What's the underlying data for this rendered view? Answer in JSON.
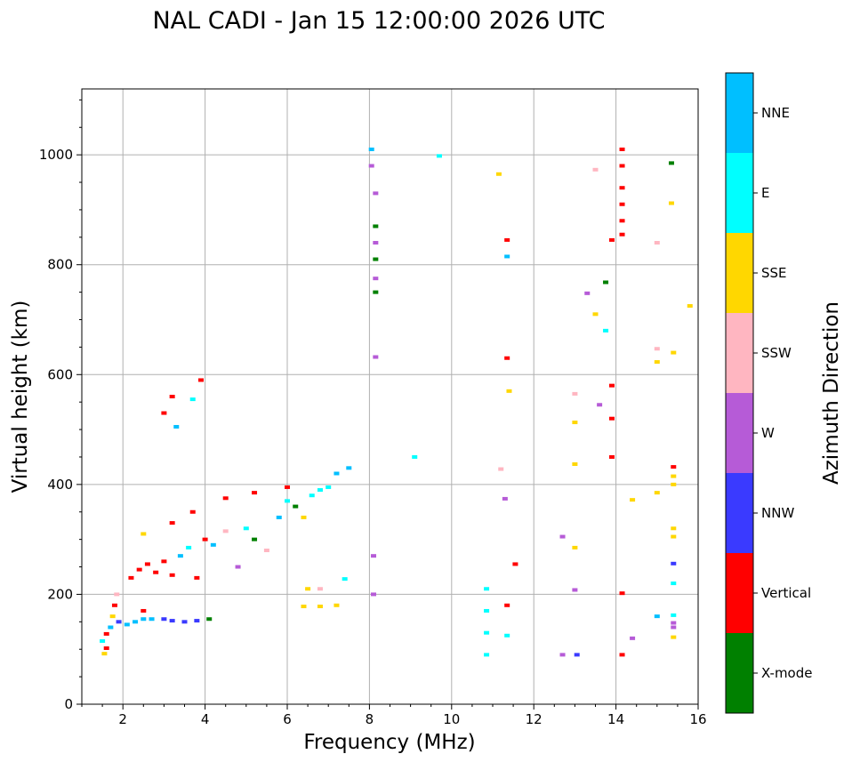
{
  "chart_data": {
    "type": "scatter",
    "title": "NAL CADI - Jan 15 12:00:00 2026 UTC",
    "xlabel": "Frequency (MHz)",
    "ylabel": "Virtual height (km)",
    "xlim": [
      1.0,
      16.0
    ],
    "ylim": [
      0,
      1120
    ],
    "xticks": [
      2,
      4,
      6,
      8,
      10,
      12,
      14,
      16
    ],
    "yticks": [
      0,
      200,
      400,
      600,
      800,
      1000
    ],
    "grid": true,
    "colorbar": {
      "label": "Azimuth Direction",
      "categories": [
        {
          "name": "X-mode",
          "color": "#008000"
        },
        {
          "name": "Vertical",
          "color": "#ff0000"
        },
        {
          "name": "NNW",
          "color": "#3a3aff"
        },
        {
          "name": "W",
          "color": "#b65bd7"
        },
        {
          "name": "SSW",
          "color": "#ffb6c1"
        },
        {
          "name": "SSE",
          "color": "#ffd700"
        },
        {
          "name": "E",
          "color": "#00ffff"
        },
        {
          "name": "NNE",
          "color": "#00bfff"
        }
      ]
    },
    "points": [
      {
        "f": 1.55,
        "h": 92,
        "c": "SSE"
      },
      {
        "f": 1.6,
        "h": 102,
        "c": "Vertical"
      },
      {
        "f": 1.5,
        "h": 115,
        "c": "E"
      },
      {
        "f": 1.6,
        "h": 128,
        "c": "Vertical"
      },
      {
        "f": 1.7,
        "h": 140,
        "c": "NNE"
      },
      {
        "f": 1.75,
        "h": 160,
        "c": "SSE"
      },
      {
        "f": 1.8,
        "h": 180,
        "c": "Vertical"
      },
      {
        "f": 1.85,
        "h": 200,
        "c": "SSW"
      },
      {
        "f": 1.9,
        "h": 150,
        "c": "NNW"
      },
      {
        "f": 2.1,
        "h": 145,
        "c": "NNE"
      },
      {
        "f": 2.3,
        "h": 150,
        "c": "NNE"
      },
      {
        "f": 2.5,
        "h": 155,
        "c": "NNE"
      },
      {
        "f": 2.5,
        "h": 170,
        "c": "Vertical"
      },
      {
        "f": 2.7,
        "h": 155,
        "c": "NNE"
      },
      {
        "f": 3.0,
        "h": 155,
        "c": "NNW"
      },
      {
        "f": 3.2,
        "h": 152,
        "c": "NNW"
      },
      {
        "f": 3.5,
        "h": 150,
        "c": "NNW"
      },
      {
        "f": 3.8,
        "h": 152,
        "c": "NNW"
      },
      {
        "f": 4.1,
        "h": 155,
        "c": "X-mode"
      },
      {
        "f": 2.2,
        "h": 230,
        "c": "Vertical"
      },
      {
        "f": 2.4,
        "h": 245,
        "c": "Vertical"
      },
      {
        "f": 2.6,
        "h": 255,
        "c": "Vertical"
      },
      {
        "f": 2.8,
        "h": 240,
        "c": "Vertical"
      },
      {
        "f": 3.0,
        "h": 260,
        "c": "Vertical"
      },
      {
        "f": 3.2,
        "h": 235,
        "c": "Vertical"
      },
      {
        "f": 3.4,
        "h": 270,
        "c": "NNE"
      },
      {
        "f": 3.6,
        "h": 285,
        "c": "E"
      },
      {
        "f": 3.8,
        "h": 230,
        "c": "Vertical"
      },
      {
        "f": 4.0,
        "h": 300,
        "c": "Vertical"
      },
      {
        "f": 4.2,
        "h": 290,
        "c": "NNE"
      },
      {
        "f": 4.5,
        "h": 315,
        "c": "SSW"
      },
      {
        "f": 4.8,
        "h": 250,
        "c": "W"
      },
      {
        "f": 5.0,
        "h": 320,
        "c": "E"
      },
      {
        "f": 5.2,
        "h": 300,
        "c": "X-mode"
      },
      {
        "f": 5.5,
        "h": 280,
        "c": "SSW"
      },
      {
        "f": 5.8,
        "h": 340,
        "c": "NNE"
      },
      {
        "f": 6.0,
        "h": 370,
        "c": "E"
      },
      {
        "f": 6.2,
        "h": 360,
        "c": "X-mode"
      },
      {
        "f": 6.4,
        "h": 340,
        "c": "SSE"
      },
      {
        "f": 6.6,
        "h": 380,
        "c": "E"
      },
      {
        "f": 6.8,
        "h": 390,
        "c": "E"
      },
      {
        "f": 7.0,
        "h": 395,
        "c": "E"
      },
      {
        "f": 7.2,
        "h": 420,
        "c": "NNE"
      },
      {
        "f": 7.5,
        "h": 430,
        "c": "NNE"
      },
      {
        "f": 2.5,
        "h": 310,
        "c": "SSE"
      },
      {
        "f": 3.2,
        "h": 330,
        "c": "Vertical"
      },
      {
        "f": 3.7,
        "h": 350,
        "c": "Vertical"
      },
      {
        "f": 4.5,
        "h": 375,
        "c": "Vertical"
      },
      {
        "f": 5.2,
        "h": 385,
        "c": "Vertical"
      },
      {
        "f": 6.0,
        "h": 395,
        "c": "Vertical"
      },
      {
        "f": 6.5,
        "h": 210,
        "c": "SSE"
      },
      {
        "f": 6.8,
        "h": 210,
        "c": "SSW"
      },
      {
        "f": 7.4,
        "h": 228,
        "c": "E"
      },
      {
        "f": 6.4,
        "h": 178,
        "c": "SSE"
      },
      {
        "f": 6.8,
        "h": 178,
        "c": "SSE"
      },
      {
        "f": 7.2,
        "h": 180,
        "c": "SSE"
      },
      {
        "f": 3.2,
        "h": 560,
        "c": "Vertical"
      },
      {
        "f": 3.7,
        "h": 555,
        "c": "E"
      },
      {
        "f": 3.9,
        "h": 590,
        "c": "Vertical"
      },
      {
        "f": 3.0,
        "h": 530,
        "c": "Vertical"
      },
      {
        "f": 3.3,
        "h": 505,
        "c": "NNE"
      },
      {
        "f": 8.05,
        "h": 1010,
        "c": "NNE"
      },
      {
        "f": 8.05,
        "h": 980,
        "c": "W"
      },
      {
        "f": 8.15,
        "h": 930,
        "c": "W"
      },
      {
        "f": 8.15,
        "h": 870,
        "c": "X-mode"
      },
      {
        "f": 8.15,
        "h": 840,
        "c": "W"
      },
      {
        "f": 8.15,
        "h": 810,
        "c": "X-mode"
      },
      {
        "f": 8.15,
        "h": 775,
        "c": "W"
      },
      {
        "f": 8.15,
        "h": 750,
        "c": "X-mode"
      },
      {
        "f": 8.15,
        "h": 632,
        "c": "W"
      },
      {
        "f": 8.1,
        "h": 270,
        "c": "W"
      },
      {
        "f": 8.1,
        "h": 200,
        "c": "W"
      },
      {
        "f": 9.1,
        "h": 450,
        "c": "E"
      },
      {
        "f": 9.7,
        "h": 998,
        "c": "E"
      },
      {
        "f": 10.85,
        "h": 90,
        "c": "E"
      },
      {
        "f": 10.85,
        "h": 130,
        "c": "E"
      },
      {
        "f": 10.85,
        "h": 170,
        "c": "E"
      },
      {
        "f": 10.85,
        "h": 210,
        "c": "E"
      },
      {
        "f": 11.15,
        "h": 965,
        "c": "SSE"
      },
      {
        "f": 11.35,
        "h": 845,
        "c": "Vertical"
      },
      {
        "f": 11.35,
        "h": 815,
        "c": "NNE"
      },
      {
        "f": 11.35,
        "h": 630,
        "c": "Vertical"
      },
      {
        "f": 11.4,
        "h": 570,
        "c": "SSE"
      },
      {
        "f": 11.2,
        "h": 428,
        "c": "SSW"
      },
      {
        "f": 11.3,
        "h": 374,
        "c": "W"
      },
      {
        "f": 11.55,
        "h": 255,
        "c": "Vertical"
      },
      {
        "f": 11.35,
        "h": 180,
        "c": "Vertical"
      },
      {
        "f": 11.35,
        "h": 125,
        "c": "E"
      },
      {
        "f": 12.7,
        "h": 305,
        "c": "W"
      },
      {
        "f": 13.0,
        "h": 285,
        "c": "SSE"
      },
      {
        "f": 13.0,
        "h": 208,
        "c": "W"
      },
      {
        "f": 12.7,
        "h": 90,
        "c": "W"
      },
      {
        "f": 13.05,
        "h": 90,
        "c": "NNW"
      },
      {
        "f": 13.0,
        "h": 565,
        "c": "SSW"
      },
      {
        "f": 13.0,
        "h": 513,
        "c": "SSE"
      },
      {
        "f": 13.0,
        "h": 437,
        "c": "SSE"
      },
      {
        "f": 13.3,
        "h": 748,
        "c": "W"
      },
      {
        "f": 13.5,
        "h": 710,
        "c": "SSE"
      },
      {
        "f": 13.6,
        "h": 545,
        "c": "W"
      },
      {
        "f": 13.5,
        "h": 973,
        "c": "SSW"
      },
      {
        "f": 13.75,
        "h": 680,
        "c": "E"
      },
      {
        "f": 13.75,
        "h": 768,
        "c": "X-mode"
      },
      {
        "f": 13.9,
        "h": 845,
        "c": "Vertical"
      },
      {
        "f": 13.9,
        "h": 450,
        "c": "Vertical"
      },
      {
        "f": 13.9,
        "h": 520,
        "c": "Vertical"
      },
      {
        "f": 13.9,
        "h": 580,
        "c": "Vertical"
      },
      {
        "f": 14.15,
        "h": 1010,
        "c": "Vertical"
      },
      {
        "f": 14.15,
        "h": 980,
        "c": "Vertical"
      },
      {
        "f": 14.15,
        "h": 940,
        "c": "Vertical"
      },
      {
        "f": 14.15,
        "h": 910,
        "c": "Vertical"
      },
      {
        "f": 14.15,
        "h": 880,
        "c": "Vertical"
      },
      {
        "f": 14.15,
        "h": 855,
        "c": "Vertical"
      },
      {
        "f": 14.15,
        "h": 202,
        "c": "Vertical"
      },
      {
        "f": 14.15,
        "h": 90,
        "c": "Vertical"
      },
      {
        "f": 14.4,
        "h": 372,
        "c": "SSE"
      },
      {
        "f": 14.4,
        "h": 120,
        "c": "W"
      },
      {
        "f": 15.0,
        "h": 840,
        "c": "SSW"
      },
      {
        "f": 15.0,
        "h": 647,
        "c": "SSW"
      },
      {
        "f": 15.0,
        "h": 623,
        "c": "SSE"
      },
      {
        "f": 15.0,
        "h": 385,
        "c": "SSE"
      },
      {
        "f": 15.0,
        "h": 160,
        "c": "NNE"
      },
      {
        "f": 15.35,
        "h": 985,
        "c": "X-mode"
      },
      {
        "f": 15.35,
        "h": 912,
        "c": "SSE"
      },
      {
        "f": 15.4,
        "h": 640,
        "c": "SSE"
      },
      {
        "f": 15.4,
        "h": 432,
        "c": "Vertical"
      },
      {
        "f": 15.4,
        "h": 415,
        "c": "SSE"
      },
      {
        "f": 15.4,
        "h": 400,
        "c": "SSE"
      },
      {
        "f": 15.4,
        "h": 320,
        "c": "SSE"
      },
      {
        "f": 15.4,
        "h": 305,
        "c": "SSE"
      },
      {
        "f": 15.4,
        "h": 256,
        "c": "NNW"
      },
      {
        "f": 15.4,
        "h": 220,
        "c": "E"
      },
      {
        "f": 15.4,
        "h": 162,
        "c": "E"
      },
      {
        "f": 15.4,
        "h": 148,
        "c": "W"
      },
      {
        "f": 15.4,
        "h": 140,
        "c": "W"
      },
      {
        "f": 15.4,
        "h": 122,
        "c": "SSE"
      },
      {
        "f": 15.8,
        "h": 725,
        "c": "SSE"
      }
    ]
  }
}
